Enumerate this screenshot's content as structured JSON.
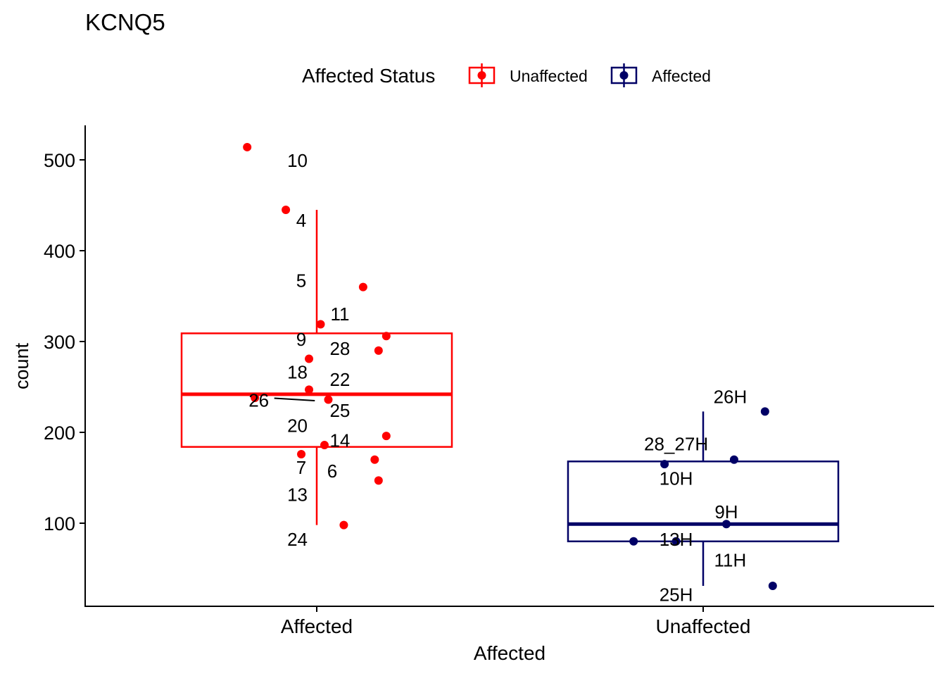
{
  "chart_data": {
    "type": "boxplot",
    "title": "KCNQ5",
    "xlabel": "Affected",
    "ylabel": "count",
    "ylim": [
      0,
      540
    ],
    "yticks": [
      100,
      200,
      300,
      400,
      500
    ],
    "categories": [
      "Affected",
      "Unaffected"
    ],
    "legend": {
      "title": "Affected Status",
      "position": "top",
      "entries": [
        {
          "label": "Unaffected",
          "color": "#ff0000"
        },
        {
          "label": "Affected",
          "color": "#000066"
        }
      ]
    },
    "boxes": [
      {
        "category": "Affected",
        "color": "#ff0000",
        "min": 98,
        "q1": 184,
        "median": 242,
        "q3": 309,
        "max": 445
      },
      {
        "category": "Unaffected",
        "color": "#000066",
        "min": 31,
        "q1": 80,
        "median": 99,
        "q3": 168,
        "max": 223
      }
    ],
    "points": [
      {
        "category": "Affected",
        "jitter": -0.18,
        "value": 514,
        "label": "10",
        "label_jitter": -0.05,
        "label_value": 500
      },
      {
        "category": "Affected",
        "jitter": -0.08,
        "value": 445,
        "label": "4",
        "label_jitter": -0.04,
        "label_value": 434
      },
      {
        "category": "Affected",
        "jitter": 0.12,
        "value": 360,
        "label": "5",
        "label_jitter": -0.04,
        "label_value": 368
      },
      {
        "category": "Affected",
        "jitter": 0.01,
        "value": 319,
        "label": "11",
        "label_jitter": 0.06,
        "label_value": 331
      },
      {
        "category": "Affected",
        "jitter": 0.18,
        "value": 306,
        "label": "9",
        "label_jitter": -0.04,
        "label_value": 303
      },
      {
        "category": "Affected",
        "jitter": 0.16,
        "value": 290,
        "label": "28",
        "label_jitter": 0.06,
        "label_value": 293
      },
      {
        "category": "Affected",
        "jitter": -0.02,
        "value": 281,
        "label": "18",
        "label_jitter": -0.05,
        "label_value": 267
      },
      {
        "category": "Affected",
        "jitter": -0.02,
        "value": 247,
        "label": "22",
        "label_jitter": 0.06,
        "label_value": 259
      },
      {
        "category": "Affected",
        "jitter": -0.16,
        "value": 238,
        "label": "26",
        "label_jitter": -0.15,
        "label_value": 236,
        "segment": true
      },
      {
        "category": "Affected",
        "jitter": 0.03,
        "value": 236,
        "label": "25",
        "label_jitter": 0.06,
        "label_value": 225
      },
      {
        "category": "Affected",
        "jitter": 0.18,
        "value": 196,
        "label": "20",
        "label_jitter": -0.05,
        "label_value": 208
      },
      {
        "category": "Affected",
        "jitter": 0.02,
        "value": 186,
        "label": "14",
        "label_jitter": 0.06,
        "label_value": 192
      },
      {
        "category": "Affected",
        "jitter": -0.04,
        "value": 176,
        "label": "7",
        "label_jitter": -0.04,
        "label_value": 162
      },
      {
        "category": "Affected",
        "jitter": 0.15,
        "value": 170,
        "label": "6",
        "label_jitter": 0.04,
        "label_value": 158
      },
      {
        "category": "Affected",
        "jitter": 0.16,
        "value": 147,
        "label": "13",
        "label_jitter": -0.05,
        "label_value": 132
      },
      {
        "category": "Affected",
        "jitter": 0.07,
        "value": 98,
        "label": "24",
        "label_jitter": -0.05,
        "label_value": 83
      },
      {
        "category": "Unaffected",
        "jitter": 0.16,
        "value": 223,
        "label": "26H",
        "label_jitter": 0.07,
        "label_value": 240
      },
      {
        "category": "Unaffected",
        "jitter": 0.08,
        "value": 170,
        "label": "28_27H",
        "label_jitter": -0.07,
        "label_value": 188
      },
      {
        "category": "Unaffected",
        "jitter": -0.1,
        "value": 165,
        "label": "10H",
        "label_jitter": -0.07,
        "label_value": 150
      },
      {
        "category": "Unaffected",
        "jitter": 0.06,
        "value": 99,
        "label": "9H",
        "label_jitter": 0.06,
        "label_value": 113
      },
      {
        "category": "Unaffected",
        "jitter": -0.18,
        "value": 80,
        "label": "13H",
        "label_jitter": -0.07,
        "label_value": 83
      },
      {
        "category": "Unaffected",
        "jitter": -0.07,
        "value": 80,
        "label": "11H",
        "label_jitter": 0.07,
        "label_value": 60
      },
      {
        "category": "Unaffected",
        "jitter": 0.18,
        "value": 31,
        "label": "25H",
        "label_jitter": -0.07,
        "label_value": 22
      }
    ]
  }
}
